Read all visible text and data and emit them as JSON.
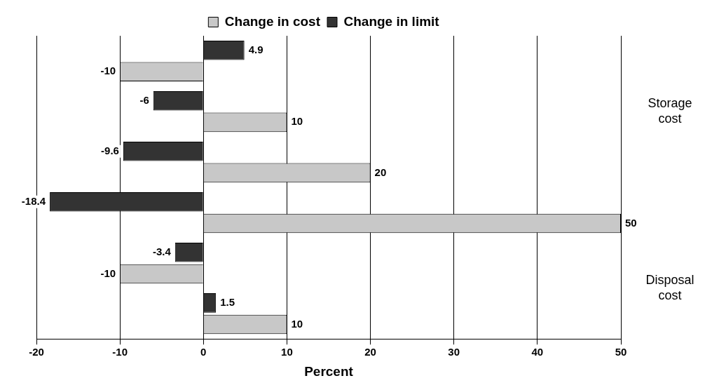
{
  "chart_data": {
    "type": "bar",
    "orientation": "horizontal",
    "xlabel": "Percent",
    "categories": [
      null,
      null,
      null,
      null,
      null,
      null
    ],
    "series": [
      {
        "name": "Change in cost",
        "color": "#c8c8c8",
        "values": [
          -10,
          10,
          20,
          50,
          -10,
          10
        ]
      },
      {
        "name": "Change in limit",
        "color": "#333333",
        "values": [
          4.9,
          -6,
          -9.6,
          -18.4,
          -3.4,
          1.5
        ]
      }
    ],
    "xlim": [
      -20,
      50
    ],
    "xticks": [
      -20,
      -10,
      0,
      10,
      20,
      30,
      40,
      50
    ],
    "grid": "x",
    "legend": "top",
    "data_labels": true,
    "annotations": [
      "Storage cost",
      "Disposal cost"
    ]
  }
}
